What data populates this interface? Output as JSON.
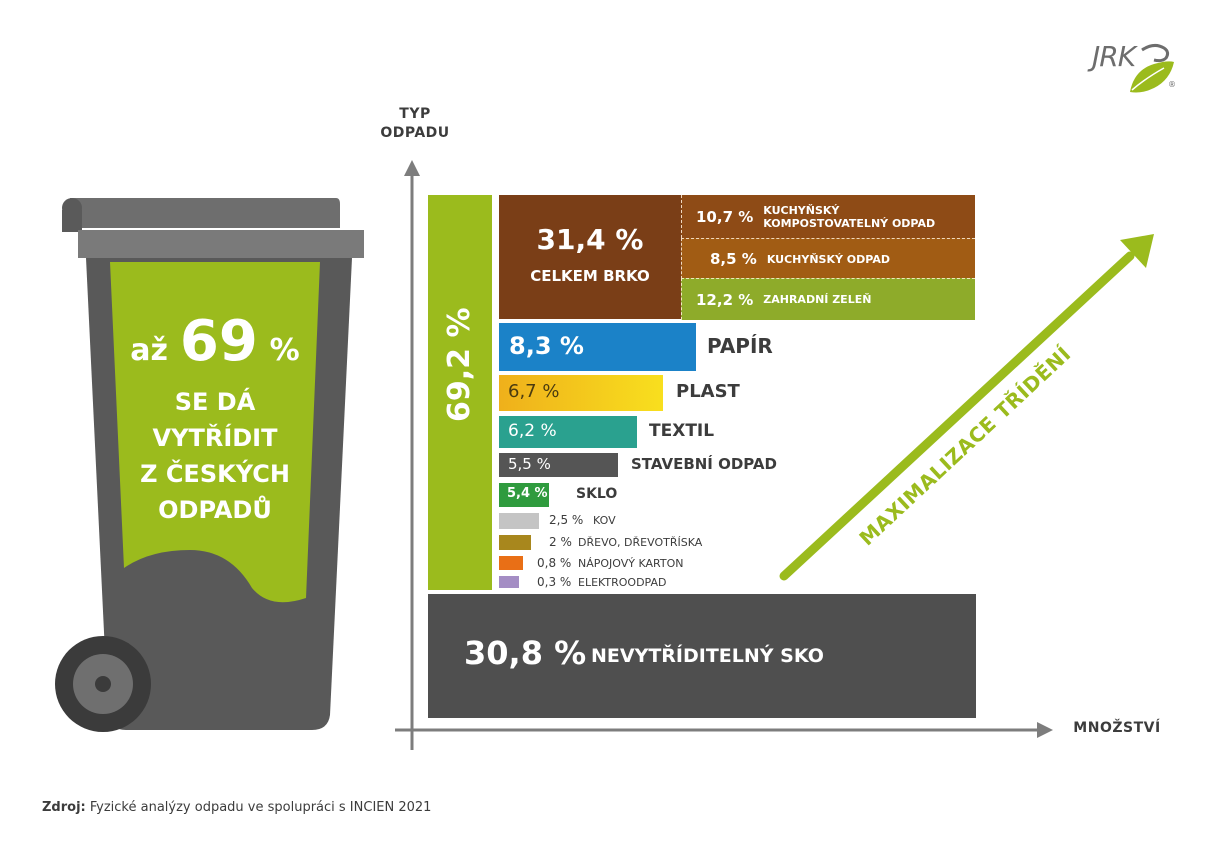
{
  "logo": {
    "text": "JRK",
    "registered": "®"
  },
  "bin": {
    "line1_prefix": "až",
    "line1_number": "69",
    "line1_suffix": "%",
    "line2": "SE DÁ",
    "line3": "VYTŘÍDIT",
    "line4": "Z ČESKÝCH",
    "line5": "ODPADŮ"
  },
  "axes": {
    "y_title_line1": "TYP",
    "y_title_line2": "ODPADU",
    "x_title": "MNOŽSTVÍ"
  },
  "arrow_label": "MAXIMALIZACE TŘÍDĚNÍ",
  "source": {
    "prefix": "Zdroj:",
    "text": " Fyzické analýzy odpadu ve spolupráci s INCIEN 2021"
  },
  "colors": {
    "green": "#9bbb1d",
    "brko": "#7a3e17",
    "kuch_komp": "#8e4b16",
    "kuch": "#a15c14",
    "zahrada": "#8eab2a",
    "papir": "#1b82c8",
    "plast": "#f3c71c",
    "textil": "#2aa18f",
    "stavebni": "#555555",
    "sklo": "#2f9b3e",
    "kov": "#c4c4c4",
    "drevo": "#a8871d",
    "karton": "#e96f16",
    "elektro": "#a48dc4",
    "nesko": "#4f4f4f"
  },
  "chart_data": {
    "type": "bar",
    "xlabel": "MNOŽSTVÍ",
    "ylabel": "TYP ODPADU",
    "sortable_total": {
      "value": 69.2,
      "label": "69,2 %"
    },
    "brko": {
      "value": 31.4,
      "label": "31,4 %",
      "name": "CELKEM BRKO",
      "components": [
        {
          "name_line1": "KUCHYŇSKÝ",
          "name_line2": "KOMPOSTOVATELNÝ ODPAD",
          "value": 10.7,
          "label": "10,7 %"
        },
        {
          "name_line1": "KUCHYŇSKÝ ODPAD",
          "name_line2": "",
          "value": 8.5,
          "label": "8,5 %"
        },
        {
          "name_line1": "ZAHRADNÍ ZELEŇ",
          "name_line2": "",
          "value": 12.2,
          "label": "12,2 %"
        }
      ]
    },
    "categories": [
      {
        "name": "PAPÍR",
        "value": 8.3,
        "label": "8,3 %"
      },
      {
        "name": "PLAST",
        "value": 6.7,
        "label": "6,7 %"
      },
      {
        "name": "TEXTIL",
        "value": 6.2,
        "label": "6,2 %"
      },
      {
        "name": "STAVEBNÍ ODPAD",
        "value": 5.5,
        "label": "5,5 %"
      },
      {
        "name": "SKLO",
        "value": 5.4,
        "label": "5,4 %"
      },
      {
        "name": "KOV",
        "value": 2.5,
        "label": "2,5 %"
      },
      {
        "name": "DŘEVO, DŘEVOTŘÍSKA",
        "value": 2,
        "label": "2 %"
      },
      {
        "name": "NÁPOJOVÝ KARTON",
        "value": 0.8,
        "label": "0,8 %"
      },
      {
        "name": "ELEKTROODPAD",
        "value": 0.3,
        "label": "0,3 %"
      }
    ],
    "unsortable": {
      "name": "NEVYTŘÍDITELNÝ SKO",
      "value": 30.8,
      "label": "30,8 %"
    }
  }
}
